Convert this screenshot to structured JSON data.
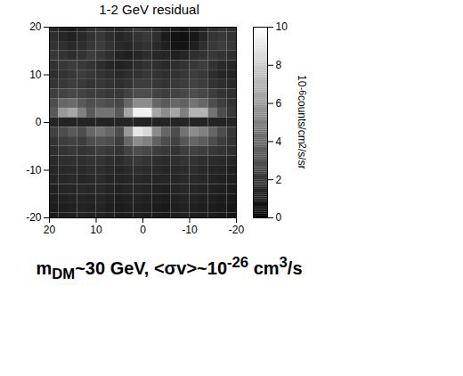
{
  "chart_data": {
    "type": "heatmap",
    "title": "1-2 GeV residual",
    "xlim": [
      20,
      -20
    ],
    "ylim": [
      -20,
      20
    ],
    "xticks": [
      20,
      10,
      0,
      -10,
      -20
    ],
    "yticks": [
      -20,
      -10,
      0,
      10,
      20
    ],
    "x": [
      19,
      17,
      15,
      13,
      11,
      9,
      7,
      5,
      3,
      1,
      -1,
      -3,
      -5,
      -7,
      -9,
      -11,
      -13,
      -15,
      -17,
      -19
    ],
    "y": [
      20,
      18,
      16,
      14,
      12,
      10,
      8,
      6,
      4,
      2,
      0,
      -2,
      -4,
      -6,
      -8,
      -10,
      -12,
      -14,
      -16,
      -18,
      -20
    ],
    "cells": [
      [
        1.5,
        1.2,
        1.0,
        1.3,
        1.8,
        2.0,
        1.6,
        1.4,
        1.8,
        2.2,
        2.0,
        1.6,
        1.2,
        1.0,
        0.8,
        1.0,
        1.4,
        1.8,
        2.0,
        1.8
      ],
      [
        1.8,
        1.5,
        1.3,
        1.6,
        2.0,
        2.2,
        1.8,
        1.5,
        1.7,
        2.0,
        2.2,
        1.8,
        1.0,
        0.7,
        0.6,
        0.9,
        1.5,
        2.0,
        2.2,
        2.0
      ],
      [
        2.0,
        1.8,
        1.6,
        1.8,
        2.2,
        2.4,
        2.0,
        1.6,
        1.5,
        1.8,
        2.0,
        1.6,
        1.2,
        0.8,
        0.8,
        1.2,
        1.8,
        2.2,
        2.4,
        2.2
      ],
      [
        2.2,
        2.0,
        1.8,
        2.0,
        2.4,
        2.2,
        1.8,
        1.4,
        1.2,
        1.5,
        1.8,
        1.5,
        1.4,
        1.2,
        1.4,
        1.8,
        2.0,
        2.2,
        2.0,
        1.8
      ],
      [
        2.0,
        2.2,
        2.4,
        2.2,
        2.0,
        1.8,
        1.5,
        1.3,
        1.5,
        1.8,
        2.0,
        1.8,
        1.6,
        1.8,
        2.0,
        2.2,
        2.4,
        2.0,
        1.6,
        1.5
      ],
      [
        1.8,
        2.0,
        2.2,
        2.4,
        2.2,
        2.0,
        1.8,
        1.6,
        1.8,
        2.0,
        2.2,
        2.0,
        1.8,
        2.0,
        2.2,
        2.4,
        2.2,
        1.8,
        1.5,
        1.4
      ],
      [
        2.0,
        2.2,
        2.4,
        2.2,
        2.0,
        2.2,
        2.0,
        1.8,
        2.0,
        2.4,
        2.4,
        2.2,
        2.0,
        2.2,
        2.4,
        2.6,
        2.4,
        2.0,
        1.8,
        1.6
      ],
      [
        2.4,
        2.6,
        2.8,
        2.6,
        2.4,
        2.4,
        2.2,
        2.2,
        2.6,
        3.0,
        3.0,
        2.6,
        2.4,
        2.6,
        2.8,
        3.0,
        2.8,
        2.4,
        2.0,
        1.8
      ],
      [
        3.0,
        4.0,
        4.2,
        3.5,
        3.0,
        3.2,
        3.0,
        2.8,
        4.0,
        5.5,
        5.5,
        4.0,
        3.5,
        4.0,
        3.8,
        4.5,
        4.0,
        3.0,
        2.4,
        2.0
      ],
      [
        3.5,
        6.0,
        6.5,
        5.0,
        3.5,
        4.5,
        4.5,
        3.5,
        6.5,
        9.5,
        9.5,
        6.5,
        5.5,
        6.5,
        5.0,
        7.0,
        7.0,
        4.5,
        3.0,
        2.2
      ],
      [
        1.4,
        1.4,
        1.4,
        1.4,
        1.4,
        1.4,
        1.4,
        1.4,
        1.4,
        1.4,
        1.4,
        1.4,
        1.4,
        1.4,
        1.4,
        1.4,
        1.4,
        1.4,
        1.4,
        1.4
      ],
      [
        2.5,
        3.0,
        3.5,
        3.0,
        4.0,
        4.5,
        4.0,
        3.0,
        6.0,
        9.0,
        8.5,
        5.5,
        4.0,
        3.0,
        4.5,
        5.5,
        5.0,
        4.0,
        3.0,
        2.2
      ],
      [
        2.0,
        2.4,
        2.6,
        2.4,
        3.0,
        3.2,
        3.0,
        2.4,
        4.0,
        5.5,
        5.0,
        3.8,
        3.0,
        2.6,
        3.4,
        4.0,
        3.6,
        3.0,
        2.4,
        2.0
      ],
      [
        1.8,
        2.0,
        2.2,
        2.0,
        2.2,
        2.4,
        2.2,
        2.0,
        2.6,
        3.0,
        2.8,
        2.4,
        2.2,
        2.0,
        2.4,
        2.6,
        2.4,
        2.2,
        2.0,
        1.8
      ],
      [
        1.6,
        1.8,
        1.9,
        1.8,
        2.0,
        2.0,
        1.8,
        1.7,
        2.0,
        2.2,
        2.0,
        1.8,
        1.7,
        1.8,
        2.0,
        2.0,
        1.8,
        1.7,
        1.6,
        1.5
      ],
      [
        1.5,
        1.6,
        1.7,
        1.6,
        1.8,
        1.8,
        1.6,
        1.5,
        1.7,
        1.8,
        1.7,
        1.6,
        1.5,
        1.6,
        1.7,
        1.8,
        1.6,
        1.5,
        1.4,
        1.3
      ],
      [
        1.4,
        1.5,
        1.6,
        1.5,
        1.6,
        1.7,
        1.5,
        1.4,
        1.5,
        1.6,
        1.5,
        1.4,
        1.4,
        1.5,
        1.6,
        1.6,
        1.5,
        1.4,
        1.3,
        1.2
      ],
      [
        1.3,
        1.4,
        1.5,
        1.6,
        1.5,
        1.6,
        1.4,
        1.3,
        1.4,
        1.5,
        1.4,
        1.3,
        1.2,
        1.4,
        1.5,
        1.5,
        1.4,
        1.3,
        1.2,
        1.1
      ],
      [
        1.2,
        1.3,
        1.4,
        1.5,
        1.4,
        1.5,
        1.3,
        1.2,
        1.3,
        1.4,
        1.3,
        1.2,
        1.1,
        1.3,
        1.4,
        1.4,
        1.3,
        1.2,
        1.1,
        1.0
      ],
      [
        1.1,
        1.2,
        1.3,
        1.4,
        1.3,
        1.4,
        1.2,
        1.1,
        1.2,
        1.3,
        1.2,
        1.1,
        1.0,
        1.2,
        1.3,
        1.3,
        1.2,
        1.1,
        1.0,
        0.9
      ],
      [
        1.0,
        1.1,
        1.2,
        1.3,
        1.2,
        1.3,
        1.1,
        1.0,
        1.1,
        1.2,
        1.1,
        1.0,
        0.9,
        1.1,
        1.2,
        1.2,
        1.1,
        1.0,
        0.9,
        0.8
      ]
    ],
    "colorbar": {
      "range": [
        0,
        10
      ],
      "ticks": [
        0,
        2,
        4,
        6,
        8,
        10
      ],
      "label": [
        {
          "text": "10"
        },
        {
          "text": "-6",
          "sup": true
        },
        {
          "text": " counts/cm"
        },
        {
          "text": "2",
          "sup": true
        },
        {
          "text": "/s/sr"
        }
      ]
    },
    "caption": [
      {
        "text": "m"
      },
      {
        "text": "DM",
        "sub": true
      },
      {
        "text": "~30 GeV, <σv>~10"
      },
      {
        "text": "-26",
        "sup": true
      },
      {
        "text": " cm"
      },
      {
        "text": "3",
        "sup": true
      },
      {
        "text": "/s"
      }
    ]
  }
}
